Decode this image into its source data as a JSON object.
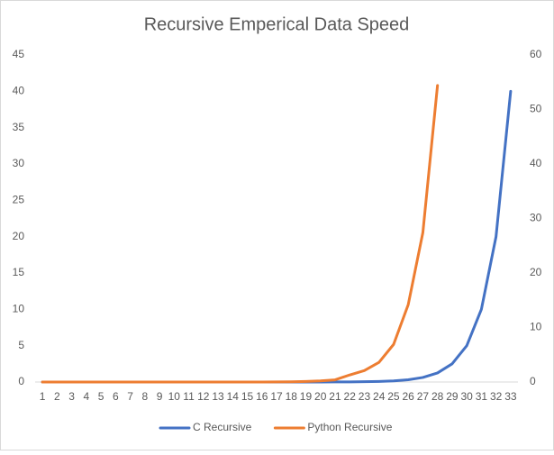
{
  "chart_data": {
    "type": "line",
    "title": "Recursive Emperical Data Speed",
    "categories": [
      "1",
      "2",
      "3",
      "4",
      "5",
      "6",
      "7",
      "8",
      "9",
      "10",
      "11",
      "12",
      "13",
      "14",
      "15",
      "16",
      "17",
      "18",
      "19",
      "20",
      "21",
      "22",
      "23",
      "24",
      "25",
      "26",
      "27",
      "28",
      "29",
      "30",
      "31",
      "32",
      "33"
    ],
    "series": [
      {
        "name": "C Recursive",
        "color": "#4472c4",
        "axis": "y",
        "values": [
          0,
          0,
          0,
          0,
          0,
          0,
          0,
          0,
          0,
          0,
          0,
          0,
          0,
          0,
          0,
          0,
          0,
          0,
          0,
          0,
          0.01,
          0.02,
          0.04,
          0.08,
          0.16,
          0.31,
          0.63,
          1.25,
          2.5,
          5,
          10,
          20,
          40
        ]
      },
      {
        "name": "Python Recursive",
        "color": "#ed7d31",
        "axis": "y2",
        "values": [
          0,
          0,
          0,
          0,
          0,
          0,
          0,
          0,
          0,
          0,
          0,
          0,
          0,
          0,
          0,
          0,
          0.02,
          0.05,
          0.1,
          0.2,
          0.4,
          1.3,
          2.1,
          3.6,
          6.9,
          14.2,
          27.4,
          54.4,
          null,
          null,
          null,
          null,
          null
        ]
      }
    ],
    "ylim": [
      0,
      45
    ],
    "yticks": [
      0,
      5,
      10,
      15,
      20,
      25,
      30,
      35,
      40,
      45
    ],
    "y2lim": [
      0,
      60
    ],
    "y2ticks": [
      0,
      10,
      20,
      30,
      40,
      50,
      60
    ],
    "grid": false,
    "legend": "bottom"
  }
}
